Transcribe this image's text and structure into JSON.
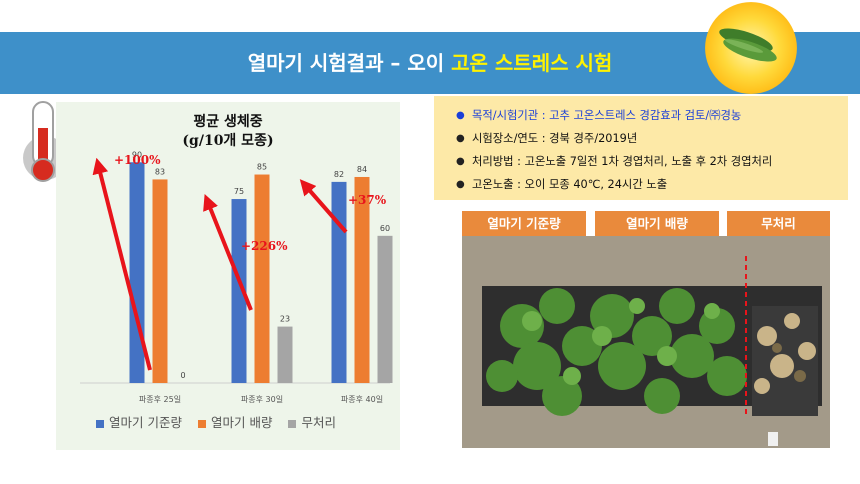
{
  "banner": {
    "title_main": "열마기 시험결과 – 오이 ",
    "title_highlight": "고온 스트레스 시험"
  },
  "colors": {
    "banner_blue": "#3e90c9",
    "highlight_yellow": "#fff200",
    "series_blue": "#4472c4",
    "series_orange": "#ed7d31",
    "series_gray": "#a5a5a5",
    "arrow_red": "#e8141b",
    "info_bg": "#fde9a7",
    "tag_orange": "#e98a3c"
  },
  "icons": {
    "thermometer": "thermometer-icon",
    "sun_cucumber": "cucumber-icon"
  },
  "info": {
    "items": [
      "목적/시험기관 : 고추 고온스트레스 경감효과 검토/㈜경농",
      "시험장소/연도 : 경북 경주/2019년",
      "처리방법 : 고온노출 7일전 1차 경엽처리, 노출 후 2차 경엽처리",
      "고온노출 : 오이 모종 40℃, 24시간 노출"
    ]
  },
  "photo": {
    "tags": [
      "열마기 기준량",
      "열마기 배량",
      "무처리"
    ]
  },
  "chart_data": {
    "type": "bar",
    "title_line1": "평균 생체중",
    "title_line2": "(g/10개 모종)",
    "categories": [
      "파종후 25일",
      "파종후 30일",
      "파종후 40일"
    ],
    "series": [
      {
        "name": "열마기 기준량",
        "values": [
          90,
          75,
          82
        ]
      },
      {
        "name": "열마기 배량",
        "values": [
          83,
          85,
          84
        ]
      },
      {
        "name": "무처리",
        "values": [
          0,
          23,
          60
        ]
      }
    ],
    "annotations": [
      "+100%",
      "+226%",
      "+37%"
    ],
    "ylim": [
      0,
      95
    ],
    "grid": false,
    "legend": "bottom"
  }
}
